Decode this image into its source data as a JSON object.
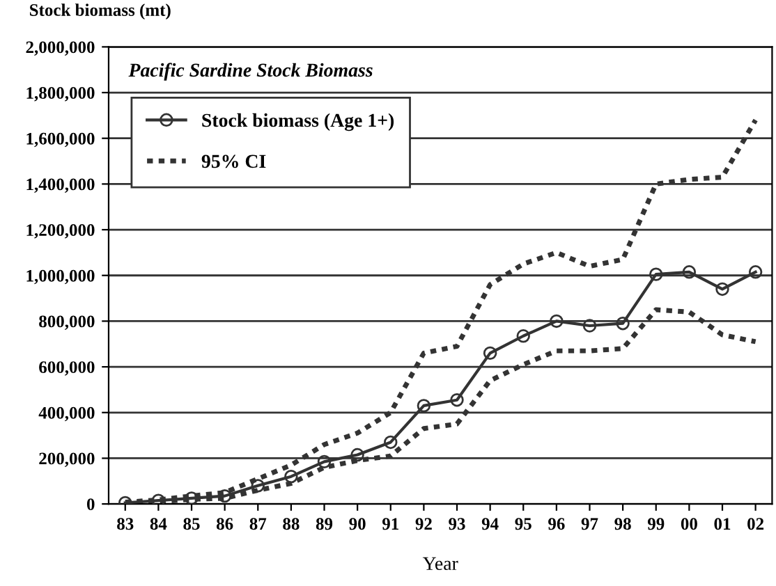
{
  "chart_data": {
    "type": "line",
    "title": "Pacific Sardine Stock Biomass",
    "xlabel": "Year",
    "ylabel": "Stock biomass (mt)",
    "categories": [
      "83",
      "84",
      "85",
      "86",
      "87",
      "88",
      "89",
      "90",
      "91",
      "92",
      "93",
      "94",
      "95",
      "96",
      "97",
      "98",
      "99",
      "00",
      "01",
      "02"
    ],
    "series": [
      {
        "name": "Stock biomass (Age 1+)",
        "color": "#333333",
        "marker": "circle",
        "line_style": "solid",
        "values": [
          5000,
          15000,
          25000,
          35000,
          80000,
          120000,
          185000,
          215000,
          270000,
          430000,
          455000,
          660000,
          735000,
          800000,
          780000,
          790000,
          1005000,
          1015000,
          940000,
          1015000
        ]
      },
      {
        "name": "95% CI",
        "color": "#333333",
        "marker": "none",
        "line_style": "dotted",
        "values": [
          8000,
          18000,
          35000,
          50000,
          110000,
          170000,
          260000,
          310000,
          400000,
          660000,
          690000,
          960000,
          1050000,
          1100000,
          1040000,
          1070000,
          1400000,
          1420000,
          1430000,
          1680000
        ]
      },
      {
        "color": "#333333",
        "marker": "none",
        "line_style": "dotted",
        "values": [
          3000,
          10000,
          20000,
          25000,
          60000,
          90000,
          160000,
          190000,
          210000,
          330000,
          350000,
          540000,
          610000,
          670000,
          670000,
          680000,
          850000,
          840000,
          740000,
          710000
        ]
      }
    ],
    "ylim": [
      0,
      2000000
    ],
    "yticks": [
      {
        "value": 0,
        "label": "0"
      },
      {
        "value": 200000,
        "label": "200,000"
      },
      {
        "value": 400000,
        "label": "400,000"
      },
      {
        "value": 600000,
        "label": "600,000"
      },
      {
        "value": 800000,
        "label": "800,000"
      },
      {
        "value": 1000000,
        "label": "1,000,000"
      },
      {
        "value": 1200000,
        "label": "1,200,000"
      },
      {
        "value": 1400000,
        "label": "1,400,000"
      },
      {
        "value": 1600000,
        "label": "1,600,000"
      },
      {
        "value": 1800000,
        "label": "1,800,000"
      },
      {
        "value": 2000000,
        "label": "2,000,000"
      }
    ],
    "grid": "y",
    "legend": "top left"
  }
}
